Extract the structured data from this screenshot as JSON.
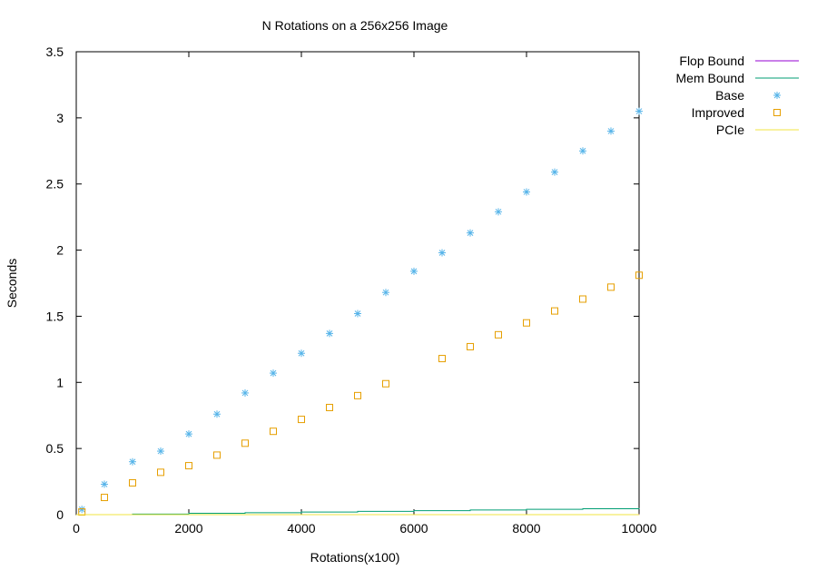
{
  "chart_data": {
    "type": "scatter",
    "title": "N Rotations on a 256x256 Image",
    "xlabel": "Rotations(x100)",
    "ylabel": "Seconds",
    "xlim": [
      0,
      10000
    ],
    "ylim": [
      0,
      3.5
    ],
    "x_ticks": [
      0,
      2000,
      4000,
      6000,
      8000,
      10000
    ],
    "x_tick_labels": [
      "0",
      "2000",
      "4000",
      "6000",
      "8000",
      "10000"
    ],
    "y_ticks": [
      0,
      0.5,
      1,
      1.5,
      2,
      2.5,
      3,
      3.5
    ],
    "y_tick_labels": [
      "0",
      "0.5",
      "1",
      "1.5",
      "2",
      "2.5",
      "3",
      "3.5"
    ],
    "grid": false,
    "legend_position": "outside-top-right",
    "series": [
      {
        "name": "Flop Bound",
        "style": "line",
        "color": "#9400d3",
        "x": [
          0,
          10000
        ],
        "y": [
          0,
          0.005
        ]
      },
      {
        "name": "Mem Bound",
        "style": "line",
        "color": "#009e73",
        "x": [
          0,
          1000,
          2000,
          3000,
          4000,
          5000,
          6000,
          7000,
          8000,
          9000,
          10000
        ],
        "y": [
          0,
          0.004,
          0.01,
          0.015,
          0.02,
          0.025,
          0.03,
          0.035,
          0.04,
          0.045,
          0.05
        ]
      },
      {
        "name": "Base",
        "style": "star",
        "color": "#56b4e9",
        "x": [
          100,
          500,
          1000,
          1500,
          2000,
          2500,
          3000,
          3500,
          4000,
          4500,
          5000,
          5500,
          6000,
          6500,
          7000,
          7500,
          8000,
          8500,
          9000,
          9500,
          10000
        ],
        "y": [
          0.04,
          0.23,
          0.4,
          0.48,
          0.61,
          0.76,
          0.92,
          1.07,
          1.22,
          1.37,
          1.52,
          1.68,
          1.84,
          1.98,
          2.13,
          2.29,
          2.44,
          2.59,
          2.75,
          2.9,
          3.05
        ]
      },
      {
        "name": "Improved",
        "style": "square",
        "color": "#e69f00",
        "x": [
          100,
          500,
          1000,
          1500,
          2000,
          2500,
          3000,
          3500,
          4000,
          4500,
          5000,
          5500,
          6500,
          7000,
          7500,
          8000,
          8500,
          9000,
          9500,
          10000
        ],
        "y": [
          0.02,
          0.13,
          0.24,
          0.32,
          0.37,
          0.45,
          0.54,
          0.63,
          0.72,
          0.81,
          0.9,
          0.99,
          1.18,
          1.27,
          1.36,
          1.45,
          1.54,
          1.63,
          1.72,
          1.81
        ]
      },
      {
        "name": "PCIe",
        "style": "line",
        "color": "#f0e442",
        "x": [
          0,
          10000
        ],
        "y": [
          0,
          0.002
        ]
      }
    ]
  }
}
